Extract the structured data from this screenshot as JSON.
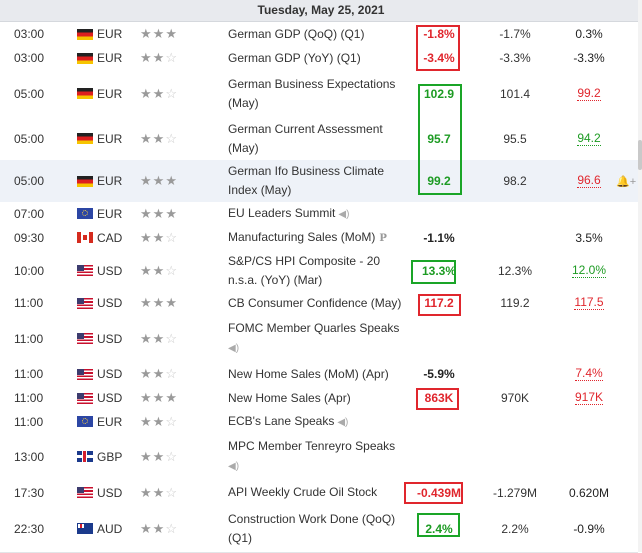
{
  "header": {
    "date": "Tuesday, May 25, 2021"
  },
  "icons": {
    "star": "★",
    "speaker": "◀)",
    "preliminary": "P",
    "bell": "🔔+"
  },
  "colors": {
    "negative": "#e0262d",
    "positive": "#1d9b23",
    "box_red": "#e0262d",
    "box_green": "#1aa527"
  },
  "rows": [
    {
      "time": "03:00",
      "flag": "germany-flag",
      "currency": "EUR",
      "stars": 3,
      "event": "German GDP (QoQ) (Q1)",
      "actual": "-1.8%",
      "actual_color": "negative",
      "forecast": "-1.7%",
      "previous": "0.3%",
      "previous_color": "neutral"
    },
    {
      "time": "03:00",
      "flag": "germany-flag",
      "currency": "EUR",
      "stars": 2,
      "event": "German GDP (YoY) (Q1)",
      "actual": "-3.4%",
      "actual_color": "negative",
      "forecast": "-3.3%",
      "previous": "-3.3%",
      "previous_color": "neutral"
    },
    {
      "time": "05:00",
      "flag": "germany-flag",
      "currency": "EUR",
      "stars": 2,
      "event": "German Business Expectations (May)",
      "actual": "102.9",
      "actual_color": "positive",
      "forecast": "101.4",
      "previous": "99.2",
      "previous_color": "negative"
    },
    {
      "time": "05:00",
      "flag": "germany-flag",
      "currency": "EUR",
      "stars": 2,
      "event": "German Current Assessment (May)",
      "actual": "95.7",
      "actual_color": "positive",
      "forecast": "95.5",
      "previous": "94.2",
      "previous_color": "positive"
    },
    {
      "time": "05:00",
      "flag": "germany-flag",
      "currency": "EUR",
      "stars": 3,
      "event": "German Ifo Business Climate Index (May)",
      "actual": "99.2",
      "actual_color": "positive",
      "forecast": "98.2",
      "previous": "96.6",
      "previous_color": "negative",
      "highlight": true,
      "alert": true
    },
    {
      "time": "07:00",
      "flag": "eu-flag",
      "currency": "EUR",
      "stars": 3,
      "event": "EU Leaders Summit",
      "speaker": true,
      "actual": "",
      "forecast": "",
      "previous": ""
    },
    {
      "time": "09:30",
      "flag": "canada-flag",
      "currency": "CAD",
      "stars": 2,
      "event": "Manufacturing Sales (MoM)",
      "prelim": true,
      "actual": "-1.1%",
      "actual_color": "neutral",
      "forecast": "",
      "previous": "3.5%",
      "previous_color": "neutral"
    },
    {
      "time": "10:00",
      "flag": "usa-flag",
      "currency": "USD",
      "stars": 2,
      "event": "S&P/CS HPI Composite - 20 n.s.a. (YoY) (Mar)",
      "actual": "13.3%",
      "actual_color": "positive",
      "forecast": "12.3%",
      "previous": "12.0%",
      "previous_color": "positive"
    },
    {
      "time": "11:00",
      "flag": "usa-flag",
      "currency": "USD",
      "stars": 3,
      "event": "CB Consumer Confidence (May)",
      "actual": "117.2",
      "actual_color": "negative",
      "forecast": "119.2",
      "previous": "117.5",
      "previous_color": "negative"
    },
    {
      "time": "11:00",
      "flag": "usa-flag",
      "currency": "USD",
      "stars": 2,
      "event": "FOMC Member Quarles Speaks",
      "speaker": true,
      "speaker_newline": true,
      "actual": "",
      "forecast": "",
      "previous": ""
    },
    {
      "time": "11:00",
      "flag": "usa-flag",
      "currency": "USD",
      "stars": 2,
      "event": "New Home Sales (MoM) (Apr)",
      "actual": "-5.9%",
      "actual_color": "neutral",
      "forecast": "",
      "previous": "7.4%",
      "previous_color": "negative"
    },
    {
      "time": "11:00",
      "flag": "usa-flag",
      "currency": "USD",
      "stars": 3,
      "event": "New Home Sales (Apr)",
      "actual": "863K",
      "actual_color": "negative",
      "forecast": "970K",
      "previous": "917K",
      "previous_color": "negative"
    },
    {
      "time": "11:00",
      "flag": "eu-flag",
      "currency": "EUR",
      "stars": 2,
      "event": "ECB's Lane Speaks",
      "speaker": true,
      "actual": "",
      "forecast": "",
      "previous": ""
    },
    {
      "time": "13:00",
      "flag": "uk-flag",
      "currency": "GBP",
      "stars": 2,
      "event": "MPC Member Tenreyro Speaks",
      "speaker": true,
      "speaker_newline": true,
      "actual": "",
      "forecast": "",
      "previous": ""
    },
    {
      "time": "17:30",
      "flag": "usa-flag",
      "currency": "USD",
      "stars": 2,
      "event": "API Weekly Crude Oil Stock",
      "actual": "-0.439M",
      "actual_color": "negative",
      "forecast": "-1.279M",
      "previous": "0.620M",
      "previous_color": "neutral"
    },
    {
      "time": "22:30",
      "flag": "australia-flag",
      "currency": "AUD",
      "stars": 2,
      "event": "Construction Work Done (QoQ) (Q1)",
      "actual": "2.4%",
      "actual_color": "positive",
      "forecast": "2.2%",
      "previous": "-0.9%",
      "previous_color": "neutral"
    }
  ]
}
